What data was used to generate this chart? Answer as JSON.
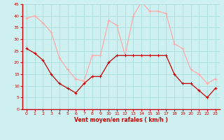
{
  "hours": [
    0,
    1,
    2,
    3,
    4,
    5,
    6,
    7,
    8,
    9,
    10,
    11,
    12,
    13,
    14,
    15,
    16,
    17,
    18,
    19,
    20,
    21,
    22,
    23
  ],
  "wind_avg": [
    26,
    24,
    21,
    15,
    11,
    9,
    7,
    11,
    14,
    14,
    20,
    23,
    23,
    23,
    23,
    23,
    23,
    23,
    15,
    11,
    11,
    8,
    5,
    9
  ],
  "wind_gust": [
    39,
    40,
    37,
    33,
    22,
    17,
    13,
    12,
    23,
    23,
    38,
    36,
    23,
    40,
    46,
    42,
    42,
    41,
    28,
    26,
    17,
    15,
    11,
    13
  ],
  "xlabel": "Vent moyen/en rafales ( km/h )",
  "ylim": [
    0,
    45
  ],
  "yticks": [
    0,
    5,
    10,
    15,
    20,
    25,
    30,
    35,
    40,
    45
  ],
  "color_avg": "#cc0000",
  "color_gust": "#ffaaaa",
  "bg_color": "#cef0f0",
  "grid_color": "#aadddd",
  "tick_color": "#cc0000",
  "label_color": "#cc0000"
}
